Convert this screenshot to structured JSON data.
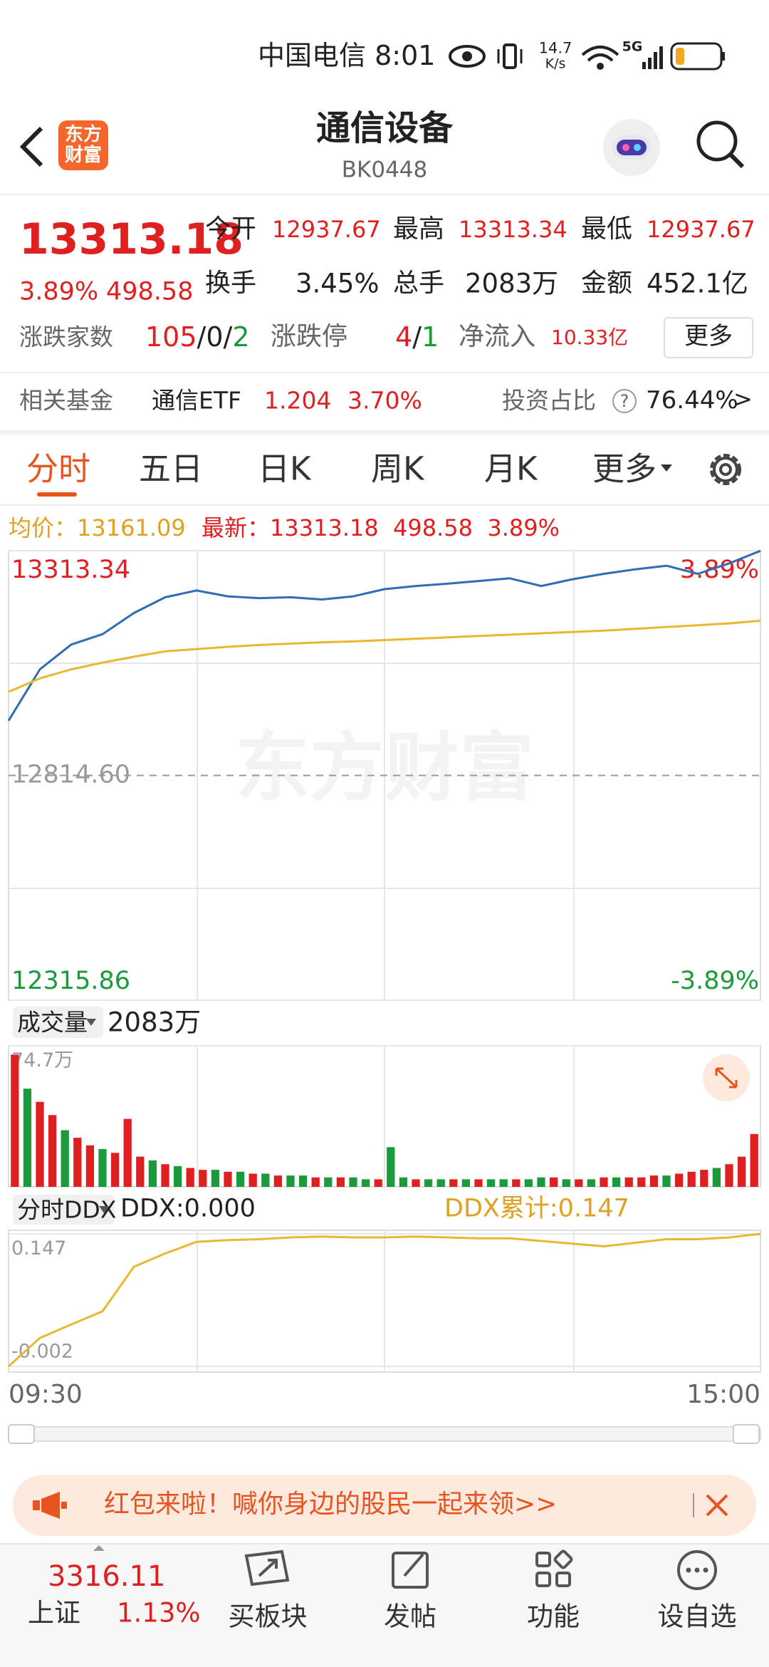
{
  "status_bar": {
    "carrier": "中国电信",
    "time": "8:01",
    "speed": "14.7",
    "speed_unit": "K/s",
    "network": "5G"
  },
  "header": {
    "logo": "东方财富",
    "title": "通信设备",
    "code": "BK0448"
  },
  "quote": {
    "price": "13313.18",
    "change_pct": "3.89%",
    "change": "498.58",
    "stats": [
      {
        "label": "今开",
        "value": "12937.67"
      },
      {
        "label": "最高",
        "value": "13313.34"
      },
      {
        "label": "最低",
        "value": "12937.67"
      },
      {
        "label": "换手",
        "value": "3.45%"
      },
      {
        "label": "总手",
        "value": "2083万"
      },
      {
        "label": "金额",
        "value": "452.1亿"
      }
    ],
    "breadth_label": "涨跌家数",
    "breadth": [
      "105",
      "/0/",
      "2"
    ],
    "limit_label": "涨跌停",
    "limit": [
      "4",
      "/",
      "1"
    ],
    "inflow_label": "净流入",
    "inflow": "10.33亿",
    "more": "更多"
  },
  "fund": {
    "label": "相关基金",
    "name": "通信ETF",
    "price": "1.204",
    "change_pct": "3.70%",
    "ratio_label": "投资占比",
    "help": "?",
    "ratio": "76.44%",
    "arrow": ">"
  },
  "tabs": [
    "分时",
    "五日",
    "日K",
    "周K",
    "月K",
    "更多"
  ],
  "legend": {
    "avg_label": "均价：",
    "avg": "13161.09",
    "last_label": "最新：",
    "last": "13313.18",
    "change": "498.58",
    "change_pct": "3.89%"
  },
  "watermark": "东方财富",
  "volume_header": {
    "label": "成交量",
    "total": "2083万"
  },
  "ddx_header": {
    "label": "分时DDX",
    "ddx": "DDX:0.000",
    "ddx_total": "DDX累计:0.147"
  },
  "chart_data": [
    {
      "type": "line",
      "ylim": [
        12315.86,
        13313.34
      ],
      "yticks": [
        13313.34,
        {
          "value": 12814.6,
          "label": "12814.60"
        },
        12315.86
      ],
      "y2lim": [
        -3.89,
        3.89
      ],
      "y2ticks": [
        {
          "value": 3.89,
          "label": "3.89%"
        },
        {
          "value": -3.89,
          "label": "-3.89%"
        }
      ],
      "series": [
        {
          "color": "#2f6db5",
          "values": [
            12936,
            13050,
            13105,
            13128,
            13175,
            13210,
            13225,
            13212,
            13208,
            13210,
            13205,
            13212,
            13228,
            13235,
            13240,
            13246,
            13252,
            13235,
            13250,
            13262,
            13272,
            13280,
            13262,
            13285,
            13313
          ]
        },
        {
          "color": "#e8b830",
          "values": [
            13000,
            13030,
            13050,
            13065,
            13078,
            13090,
            13095,
            13100,
            13104,
            13107,
            13110,
            13112,
            13115,
            13118,
            13121,
            13124,
            13127,
            13130,
            13133,
            13136,
            13140,
            13144,
            13148,
            13152,
            13158
          ]
        }
      ]
    },
    {
      "type": "bar",
      "ylim": [
        0,
        74.7
      ],
      "yticks": [
        {
          "value": 74.7,
          "label": "74.7万"
        }
      ],
      "values": [
        70,
        52,
        45,
        38,
        30,
        26,
        22,
        20,
        18,
        36,
        16,
        14,
        12,
        11,
        10,
        9,
        9,
        8,
        8,
        7,
        7,
        6,
        6,
        6,
        5,
        5,
        5,
        5,
        4,
        4,
        21,
        5,
        4,
        4,
        4,
        4,
        4,
        4,
        4,
        4,
        4,
        4,
        5,
        5,
        4,
        4,
        4,
        5,
        5,
        5,
        5,
        6,
        6,
        7,
        8,
        9,
        10,
        12,
        16,
        28
      ],
      "colors": [
        "#e02020",
        "#1a9a3a",
        "#e02020",
        "#e02020",
        "#1a9a3a",
        "#e02020",
        "#e02020",
        "#1a9a3a",
        "#e02020",
        "#e02020",
        "#e02020",
        "#1a9a3a",
        "#e02020",
        "#1a9a3a",
        "#e02020",
        "#e02020",
        "#1a9a3a",
        "#e02020",
        "#1a9a3a",
        "#e02020",
        "#1a9a3a",
        "#e02020",
        "#1a9a3a",
        "#1a9a3a",
        "#e02020",
        "#1a9a3a",
        "#e02020",
        "#1a9a3a",
        "#1a9a3a",
        "#e02020",
        "#1a9a3a",
        "#1a9a3a",
        "#e02020",
        "#1a9a3a",
        "#1a9a3a",
        "#e02020",
        "#1a9a3a",
        "#e02020",
        "#1a9a3a",
        "#1a9a3a",
        "#e02020",
        "#1a9a3a",
        "#1a9a3a",
        "#e02020",
        "#1a9a3a",
        "#e02020",
        "#1a9a3a",
        "#e02020",
        "#1a9a3a",
        "#e02020",
        "#e02020",
        "#e02020",
        "#1a9a3a",
        "#e02020",
        "#e02020",
        "#e02020",
        "#1a9a3a",
        "#e02020",
        "#e02020",
        "#e02020"
      ]
    },
    {
      "type": "line",
      "ylim": [
        -0.002,
        0.147
      ],
      "yticks": [
        0.147,
        -0.002
      ],
      "series": [
        {
          "color": "#e8b830",
          "values": [
            -0.002,
            0.03,
            0.045,
            0.06,
            0.11,
            0.125,
            0.138,
            0.14,
            0.141,
            0.143,
            0.144,
            0.143,
            0.143,
            0.144,
            0.143,
            0.142,
            0.142,
            0.139,
            0.136,
            0.133,
            0.137,
            0.141,
            0.141,
            0.143,
            0.147
          ]
        }
      ],
      "x_labels": [
        "09:30",
        "15:00"
      ]
    }
  ],
  "banner": {
    "text": "红包来啦！喊你身边的股民一起来领>>"
  },
  "nav": {
    "index_price": "3316.11",
    "index_name": "上证",
    "index_change": "1.13%",
    "items": [
      "买板块",
      "发帖",
      "功能",
      "设自选"
    ]
  }
}
